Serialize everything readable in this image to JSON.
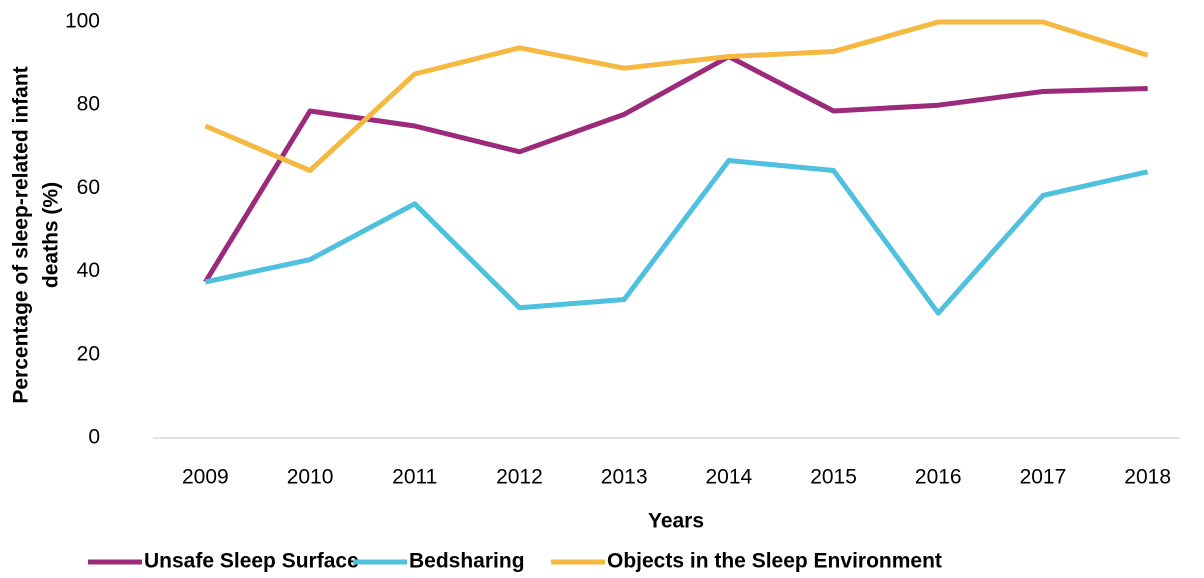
{
  "chart_data": {
    "type": "line",
    "xlabel": "Years",
    "ylabel": [
      "Percentage of sleep-related infant",
      "deaths (%)"
    ],
    "categories": [
      "2009",
      "2010",
      "2011",
      "2012",
      "2013",
      "2014",
      "2015",
      "2016",
      "2017",
      "2018"
    ],
    "series": [
      {
        "name": "Unsafe Sleep Surface",
        "color": "#9b2b7a",
        "values": [
          37.5,
          78.6,
          75,
          68.8,
          77.8,
          91.7,
          78.6,
          80,
          83.3,
          84
        ]
      },
      {
        "name": "Bedsharing",
        "color": "#4fc1df",
        "values": [
          37.5,
          42.9,
          56.3,
          31.3,
          33.3,
          66.7,
          64.3,
          30,
          58.3,
          64
        ]
      },
      {
        "name": "Objects in the Sleep Environment",
        "color": "#f5b942",
        "values": [
          75,
          64.3,
          87.5,
          93.8,
          88.9,
          91.7,
          92.9,
          100,
          100,
          92
        ]
      }
    ],
    "ylim": [
      0,
      100
    ],
    "yticks": [
      0,
      20,
      40,
      60,
      80,
      100
    ],
    "grid": false,
    "legend": "bottom"
  }
}
